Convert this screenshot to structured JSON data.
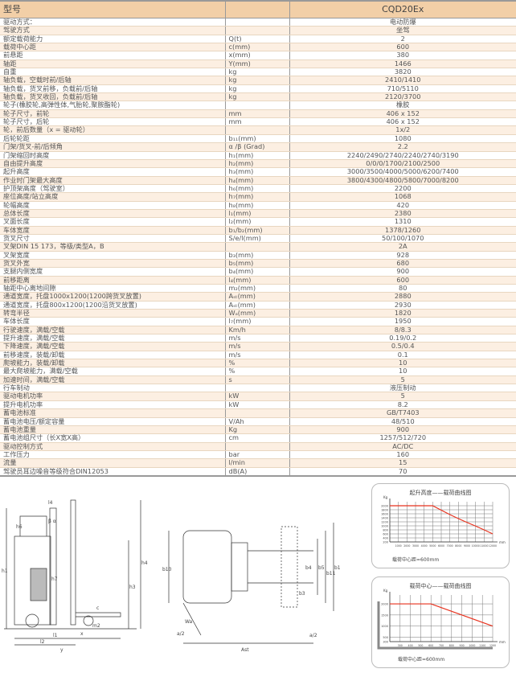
{
  "table": {
    "header": {
      "label": "型号",
      "unit": "",
      "value": "CQD20Ex"
    },
    "rows": [
      {
        "label": "驱动方式：",
        "unit": "",
        "value": "电动防爆"
      },
      {
        "label": "驾驶方式",
        "unit": "",
        "value": "坐驾"
      },
      {
        "label": "额定载荷能力",
        "unit": "Q(t)",
        "value": "2"
      },
      {
        "label": "载荷中心距",
        "unit": "c(mm)",
        "value": "600"
      },
      {
        "label": "前悬距",
        "unit": "x(mm)",
        "value": "380"
      },
      {
        "label": "轴距",
        "unit": "Y(mm)",
        "value": "1466"
      },
      {
        "label": "自重",
        "unit": "kg",
        "value": "3820"
      },
      {
        "label": "轴负载，空载时前/后轴",
        "unit": "kg",
        "value": "2410/1410"
      },
      {
        "label": "轴负载，货叉前移，负载前/后轴",
        "unit": "kg",
        "value": "710/5110"
      },
      {
        "label": "轴负载，货叉收回，负载前/后轴",
        "unit": "kg",
        "value": "2120/3700"
      },
      {
        "label": "轮子(橡胶轮,高弹性体,气胎轮,聚胺酯轮)",
        "unit": "",
        "value": "橡胶"
      },
      {
        "label": "轮子尺寸，前轮",
        "unit": "mm",
        "value": "406 x 152"
      },
      {
        "label": "轮子尺寸，后轮",
        "unit": "mm",
        "value": "406 x 152"
      },
      {
        "label": "轮，前后数量（x = 驱动轮）",
        "unit": "",
        "value": "1x/2"
      },
      {
        "label": "后轮轮距",
        "unit": "b₁₁(mm)",
        "value": "1080"
      },
      {
        "label": "门架/货叉-前/后倾角",
        "unit": "α /β  (Grad)",
        "value": "2.2"
      },
      {
        "label": "门架缩回时高度",
        "unit": "h₁(mm)",
        "value": "2240/2490/2740/2240/2740/3190"
      },
      {
        "label": "自由提升高度",
        "unit": "h₂(mm)",
        "value": "0/0/0/1700/2100/2500"
      },
      {
        "label": "起升高度",
        "unit": "h₃(mm)",
        "value": "3000/3500/4000/5000/6200/7400"
      },
      {
        "label": "作业时门架最大高度",
        "unit": "h₄(mm)",
        "value": "3800/4300/4800/5800/7000/8200"
      },
      {
        "label": "护顶架高度（驾驶室）",
        "unit": "h₆(mm)",
        "value": "2200"
      },
      {
        "label": "座位高度/站立高度",
        "unit": "h₇(mm)",
        "value": "1068"
      },
      {
        "label": "轮幅高度",
        "unit": "h₈(mm)",
        "value": "420"
      },
      {
        "label": "总体长度",
        "unit": "l₁(mm)",
        "value": "2380"
      },
      {
        "label": "叉面长度",
        "unit": "l₂(mm)",
        "value": "1310"
      },
      {
        "label": "车体宽度",
        "unit": "b₁/b₂(mm)",
        "value": "1378/1260"
      },
      {
        "label": "货叉尺寸",
        "unit": "S/e/l(mm)",
        "value": "50/100/1070"
      },
      {
        "label": "叉架DIN 15 173，等级/类型A，B",
        "unit": "",
        "value": "2A"
      },
      {
        "label": "叉架宽度",
        "unit": "b₃(mm)",
        "value": "928"
      },
      {
        "label": "货叉外宽",
        "unit": "b₅(mm)",
        "value": "680"
      },
      {
        "label": "支腿内侧宽度",
        "unit": "b₄(mm)",
        "value": "900"
      },
      {
        "label": "前移距离",
        "unit": "l₄(mm)",
        "value": "600"
      },
      {
        "label": "轴距中心离地间隙",
        "unit": "m₂(mm)",
        "value": "80"
      },
      {
        "label": "通道宽度，托盘1000x1200(1200跨货叉放置)",
        "unit": "Aₛₜ(mm)",
        "value": "2880"
      },
      {
        "label": "通道宽度，托盘800x1200(1200沿货叉放置)",
        "unit": "Aₛₜ(mm)",
        "value": "2930"
      },
      {
        "label": "转弯半径",
        "unit": "Wₐ(mm)",
        "value": "1820"
      },
      {
        "label": "车体长度",
        "unit": "l₇(mm)",
        "value": "1950"
      },
      {
        "label": "行驶速度，满载/空载",
        "unit": "Km/h",
        "value": "8/8.3"
      },
      {
        "label": "提升速度，满载/空载",
        "unit": "m/s",
        "value": "0.19/0.2"
      },
      {
        "label": "下降速度，满载/空载",
        "unit": "m/s",
        "value": "0.5/0.4"
      },
      {
        "label": "前移速度，装载/卸载",
        "unit": "m/s",
        "value": "0.1"
      },
      {
        "label": "爬坡能力，装载/卸载",
        "unit": "%",
        "value": "10"
      },
      {
        "label": "最大爬坡能力，满载/空载",
        "unit": "%",
        "value": "10"
      },
      {
        "label": "加速时间，满载/空载",
        "unit": "s",
        "value": "5"
      },
      {
        "label": "行车制动",
        "unit": "",
        "value": "液压制动"
      },
      {
        "label": "驱动电机功率",
        "unit": "kW",
        "value": "5"
      },
      {
        "label": "提升电机功率",
        "unit": "kW",
        "value": "8.2"
      },
      {
        "label": "蓄电池标准",
        "unit": "",
        "value": "GB/T7403"
      },
      {
        "label": "蓄电池电压/额定容量",
        "unit": "V/Ah",
        "value": "48/510"
      },
      {
        "label": "蓄电池重量",
        "unit": "Kg",
        "value": "900"
      },
      {
        "label": "蓄电池组尺寸（长X宽X高）",
        "unit": "cm",
        "value": "1257/512/720"
      },
      {
        "label": "驱动控制方式",
        "unit": "",
        "value": "AC/DC"
      },
      {
        "label": "工作压力",
        "unit": "bar",
        "value": "160"
      },
      {
        "label": "流量",
        "unit": "l/min",
        "value": "15"
      },
      {
        "label": "驾驶员耳边噪音等级符合DIN12053",
        "unit": "dB(A)",
        "value": "70"
      }
    ]
  },
  "drawings": {
    "side_labels": {
      "h1": "h1",
      "h3": "h3",
      "h4": "h4",
      "h6": "h6",
      "h7": "h7",
      "l1": "l1",
      "l2": "l2",
      "l4": "l4",
      "m2": "m2",
      "c": "c",
      "x": "x",
      "y": "y",
      "alpha": "β  α"
    },
    "top_labels": {
      "b10": "b10",
      "b11": "b11",
      "b4": "b4",
      "b5": "b5",
      "b3": "b3",
      "b1": "b1",
      "wa": "Wa",
      "a2l": "a/2",
      "a2r": "a/2",
      "ast": "Ast"
    }
  },
  "chart_data": [
    {
      "type": "line",
      "title": "起升高度——载荷曲线图",
      "ylabel": "Kg",
      "xlabel": "mm",
      "footer": "载荷中心距=600mm",
      "x_ticks": [
        1000,
        2000,
        3000,
        4000,
        5000,
        6000,
        7000,
        8000,
        9000,
        10000,
        11000,
        12000
      ],
      "y_ticks": [
        200,
        400,
        600,
        800,
        1000,
        1200,
        1400,
        1600,
        1800,
        2000
      ],
      "xlim": [
        0,
        12000
      ],
      "ylim": [
        200,
        2200
      ],
      "grid": true,
      "series": [
        {
          "color": "#e8321e",
          "x": [
            0,
            5000,
            6000,
            7000,
            8000,
            9000,
            10000,
            11000,
            12000
          ],
          "y": [
            2000,
            2000,
            1780,
            1560,
            1360,
            1170,
            990,
            800,
            600
          ]
        }
      ]
    },
    {
      "type": "line",
      "title": "载荷中心——载荷曲线图",
      "ylabel": "Kg",
      "xlabel": "mm",
      "footer": "载荷中心距=600mm",
      "x_ticks": [
        300,
        400,
        500,
        600,
        700,
        800,
        900,
        1000,
        1100,
        1200
      ],
      "y_ticks": [
        300,
        500,
        1000,
        1500,
        2000
      ],
      "xlim": [
        200,
        1200
      ],
      "ylim": [
        300,
        2400
      ],
      "grid": true,
      "series": [
        {
          "color": "#e8321e",
          "x": [
            200,
            600,
            1200
          ],
          "y": [
            2000,
            2000,
            1000
          ]
        }
      ]
    }
  ]
}
